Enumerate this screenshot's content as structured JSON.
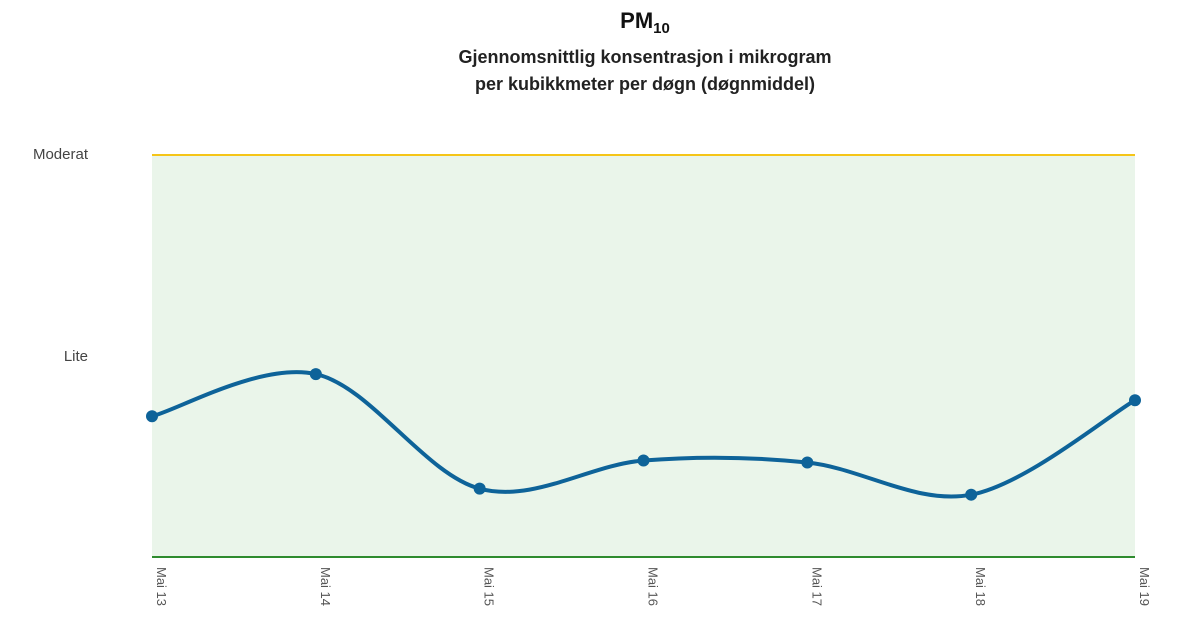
{
  "title": {
    "main": "PM",
    "sub": "10"
  },
  "subtitle": "Gjennomsnittlig konsentrasjon i mikrogram per kubikkmeter per døgn (døgnmiddel)",
  "colors": {
    "band": "#eaf5ea",
    "moderat_line": "#f5c518",
    "baseline": "#2e8b2e",
    "series": "#0e6399"
  },
  "chart_data": {
    "type": "line",
    "title": "PM10",
    "subtitle": "Gjennomsnittlig konsentrasjon i mikrogram per kubikkmeter per døgn (døgnmiddel)",
    "xlabel": "",
    "ylabel": "",
    "categories": [
      "Mai 13",
      "Mai 14",
      "Mai 15",
      "Mai 16",
      "Mai 17",
      "Mai 18",
      "Mai 19"
    ],
    "y_levels": [
      {
        "label": "Lite",
        "value": 1
      },
      {
        "label": "Moderat",
        "value": 2
      }
    ],
    "ylim": [
      0,
      2
    ],
    "series": [
      {
        "values": [
          0.7,
          0.91,
          0.34,
          0.48,
          0.47,
          0.31,
          0.78
        ]
      }
    ],
    "smooth": true,
    "grid": false,
    "legend": "none"
  }
}
